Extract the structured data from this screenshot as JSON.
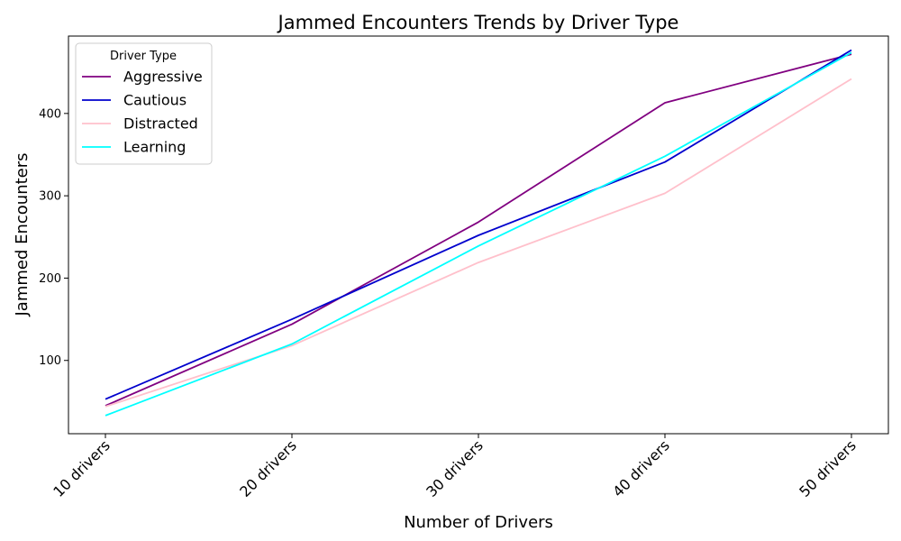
{
  "chart_data": {
    "type": "line",
    "title": "Jammed Encounters Trends by Driver Type",
    "xlabel": "Number of Drivers",
    "ylabel": "Jammed Encounters",
    "categories": [
      "10 drivers",
      "20 drivers",
      "30 drivers",
      "40 drivers",
      "50 drivers"
    ],
    "yticks": [
      100,
      200,
      300,
      400
    ],
    "ylim": [
      11,
      494
    ],
    "grid": false,
    "legend": {
      "title": "Driver Type",
      "placement": "top-left"
    },
    "series": [
      {
        "name": "Aggressive",
        "color": "#800080",
        "values": [
          45,
          144,
          268,
          413,
          472
        ]
      },
      {
        "name": "Cautious",
        "color": "#0000cd",
        "values": [
          53,
          150,
          252,
          341,
          477
        ]
      },
      {
        "name": "Distracted",
        "color": "#ffc0cb",
        "values": [
          44,
          118,
          219,
          303,
          442
        ]
      },
      {
        "name": "Learning",
        "color": "#00ffff",
        "values": [
          33,
          120,
          239,
          348,
          474
        ]
      }
    ]
  }
}
